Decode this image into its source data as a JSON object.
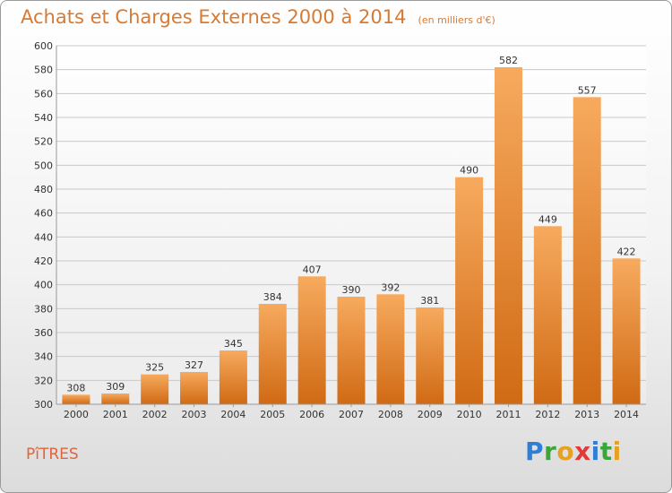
{
  "title": "Achats et Charges Externes 2000 à 2014",
  "subtitle": "(en milliers d'€)",
  "commune": "PîTRES",
  "logo": {
    "letters": [
      "P",
      "r",
      "o",
      "x",
      "i",
      "t",
      "i"
    ],
    "colors": [
      "#2f7fd6",
      "#3aa63a",
      "#e8a020",
      "#e03a3a",
      "#2f7fd6",
      "#3aa63a",
      "#e8a020"
    ]
  },
  "chart_data": {
    "type": "bar",
    "categories": [
      "2000",
      "2001",
      "2002",
      "2003",
      "2004",
      "2005",
      "2006",
      "2007",
      "2008",
      "2009",
      "2010",
      "2011",
      "2012",
      "2013",
      "2014"
    ],
    "values": [
      308,
      309,
      325,
      327,
      345,
      384,
      407,
      390,
      392,
      381,
      490,
      582,
      449,
      557,
      422
    ],
    "ylim": [
      300,
      600
    ],
    "yticks": [
      300,
      320,
      340,
      360,
      380,
      400,
      420,
      440,
      460,
      480,
      500,
      520,
      540,
      560,
      580,
      600
    ],
    "grid": true,
    "bar_color": "#f0a050"
  }
}
